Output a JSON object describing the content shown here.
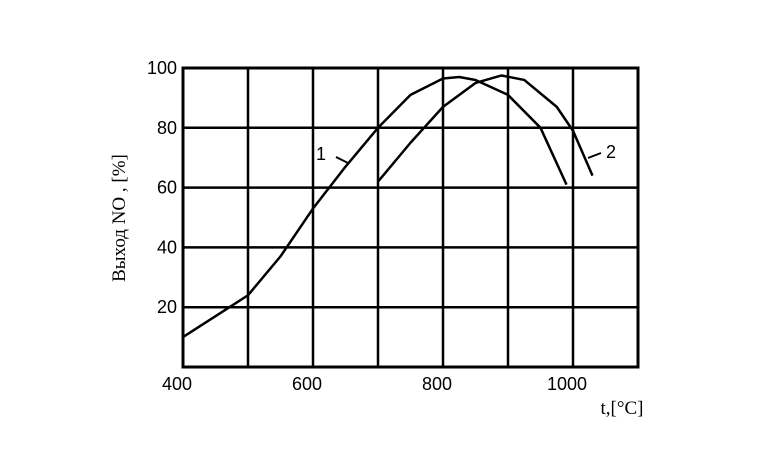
{
  "chart_data": {
    "type": "line",
    "x_label": "t,[°C]",
    "y_label": "Выход NO , [%]",
    "xlim": [
      400,
      1100
    ],
    "xticks": [
      400,
      600,
      800,
      1000
    ],
    "x_minor_grid": [
      500,
      700,
      900,
      1100
    ],
    "ylim": [
      0,
      100
    ],
    "yticks": [
      20,
      40,
      60,
      80,
      100
    ],
    "grid": true,
    "series": [
      {
        "name": "1",
        "color": "#000000",
        "x": [
          400,
          450,
          500,
          550,
          600,
          650,
          700,
          750,
          800,
          825,
          850,
          900,
          950,
          990
        ],
        "values": [
          10,
          17,
          24,
          37,
          53,
          67,
          80,
          91,
          96.5,
          97,
          96,
          91,
          80,
          61
        ]
      },
      {
        "name": "2",
        "color": "#000000",
        "x": [
          700,
          750,
          800,
          850,
          890,
          925,
          975,
          1000,
          1030
        ],
        "values": [
          62,
          75,
          87,
          95,
          97.5,
          96,
          87,
          79,
          64
        ]
      }
    ]
  }
}
